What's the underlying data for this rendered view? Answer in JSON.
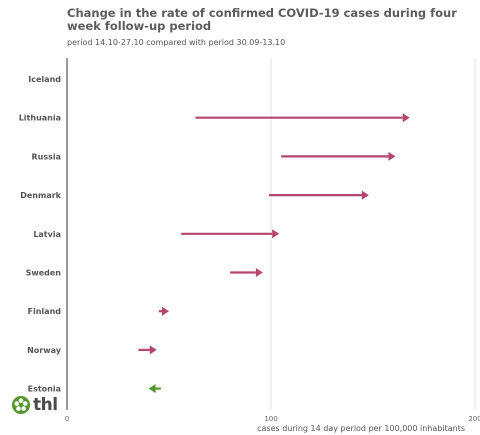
{
  "chart_data": {
    "type": "arrow",
    "title": "Change in the rate of confirmed COVID-19 cases during four week follow-up period",
    "subtitle": "period 14.10-27.10 compared with period 30.09-13.10",
    "xlabel": "cases during 14 day period per 100,000 inhabitants",
    "xlim": [
      0,
      200
    ],
    "xticks": [
      0,
      100,
      200
    ],
    "increase_color": "#b5456e",
    "decrease_color": "#55962f",
    "categories": [
      "Iceland",
      "Lithuania",
      "Russia",
      "Denmark",
      "Latvia",
      "Sweden",
      "Finland",
      "Norway",
      "Estonia"
    ],
    "series": [
      {
        "name": "",
        "start": [
          null,
          63,
          105,
          99,
          56,
          80,
          45,
          35,
          46
        ],
        "end": [
          null,
          168,
          161,
          148,
          104,
          96,
          50,
          44,
          40
        ]
      }
    ]
  },
  "logo": {
    "text": "thl",
    "icon": "thl-flower-icon",
    "color": "#55962f"
  }
}
